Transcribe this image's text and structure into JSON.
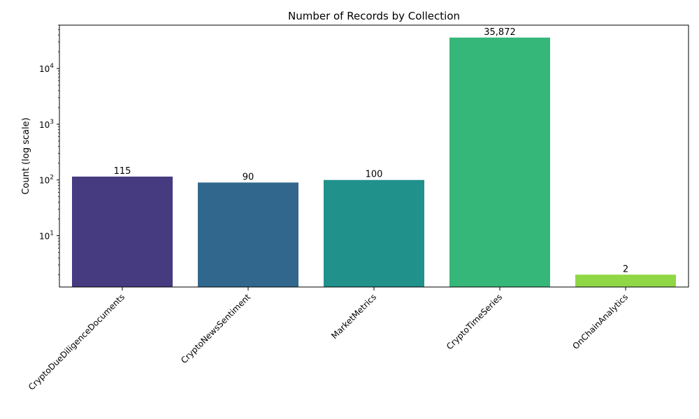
{
  "chart_data": {
    "type": "bar",
    "title": "Number of Records by Collection",
    "xlabel": "",
    "ylabel": "Count (log scale)",
    "yscale": "log",
    "ylim": [
      1.2,
      60000
    ],
    "yticks": [
      {
        "value": 10,
        "label_base": "10",
        "label_exp": "1"
      },
      {
        "value": 100,
        "label_base": "10",
        "label_exp": "2"
      },
      {
        "value": 1000,
        "label_base": "10",
        "label_exp": "3"
      },
      {
        "value": 10000,
        "label_base": "10",
        "label_exp": "4"
      }
    ],
    "categories": [
      "CryptoDueDiligenceDocuments",
      "CryptoNewsSentiment",
      "MarketMetrics",
      "CryptoTimeSeries",
      "OnChainAnalytics"
    ],
    "values": [
      115,
      90,
      100,
      35872,
      2
    ],
    "value_labels": [
      "115",
      "90",
      "100",
      "35,872",
      "2"
    ],
    "colors": [
      "#463a81",
      "#31678d",
      "#21918c",
      "#35b779",
      "#8fd744"
    ],
    "grid": false,
    "legend": "none"
  }
}
